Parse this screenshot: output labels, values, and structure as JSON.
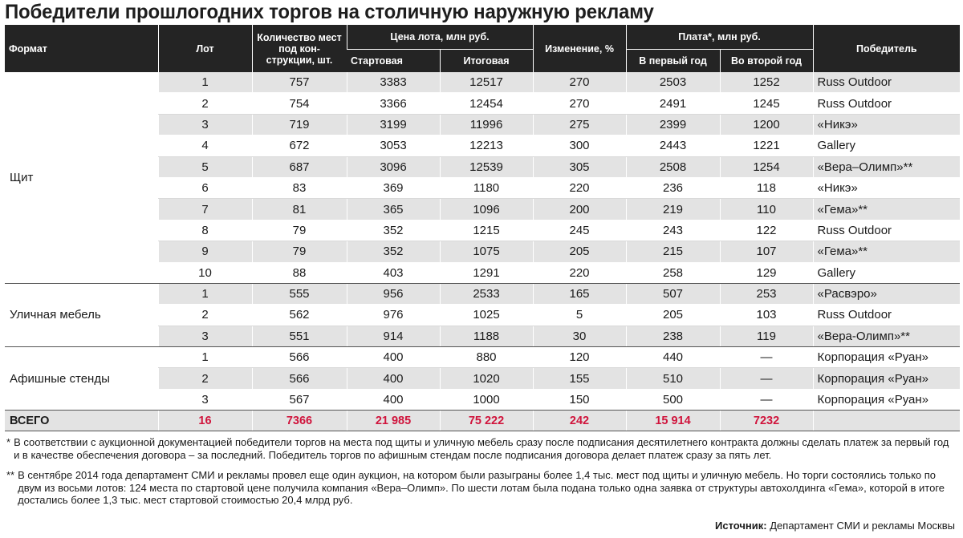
{
  "title": "Победители прошлогодних торгов на столичную наружную рекламу",
  "headers": {
    "format": "Формат",
    "lot": "Лот",
    "count": "Количество мест под кон-струкции, шт.",
    "price_group": "Цена лота, млн руб.",
    "start": "Стартовая",
    "final": "Итоговая",
    "change": "Изменение, %",
    "fee_group": "Плата*, млн руб.",
    "year1": "В первый год",
    "year2": "Во второй год",
    "winner": "Победитель"
  },
  "groups": [
    {
      "format": "Щит",
      "rows": [
        {
          "lot": "1",
          "count": "757",
          "start": "3383",
          "final": "12517",
          "change": "270",
          "year1": "2503",
          "year2": "1252",
          "winner": "Russ Outdoor"
        },
        {
          "lot": "2",
          "count": "754",
          "start": "3366",
          "final": "12454",
          "change": "270",
          "year1": "2491",
          "year2": "1245",
          "winner": "Russ Outdoor"
        },
        {
          "lot": "3",
          "count": "719",
          "start": "3199",
          "final": "11996",
          "change": "275",
          "year1": "2399",
          "year2": "1200",
          "winner": "«Никэ»"
        },
        {
          "lot": "4",
          "count": "672",
          "start": "3053",
          "final": "12213",
          "change": "300",
          "year1": "2443",
          "year2": "1221",
          "winner": "Gallery"
        },
        {
          "lot": "5",
          "count": "687",
          "start": "3096",
          "final": "12539",
          "change": "305",
          "year1": "2508",
          "year2": "1254",
          "winner": "«Вера–Олимп»**"
        },
        {
          "lot": "6",
          "count": "83",
          "start": "369",
          "final": "1180",
          "change": "220",
          "year1": "236",
          "year2": "118",
          "winner": "«Никэ»"
        },
        {
          "lot": "7",
          "count": "81",
          "start": "365",
          "final": "1096",
          "change": "200",
          "year1": "219",
          "year2": "110",
          "winner": "«Гема»**"
        },
        {
          "lot": "8",
          "count": "79",
          "start": "352",
          "final": "1215",
          "change": "245",
          "year1": "243",
          "year2": "122",
          "winner": "Russ Outdoor"
        },
        {
          "lot": "9",
          "count": "79",
          "start": "352",
          "final": "1075",
          "change": "205",
          "year1": "215",
          "year2": "107",
          "winner": "«Гема»**"
        },
        {
          "lot": "10",
          "count": "88",
          "start": "403",
          "final": "1291",
          "change": "220",
          "year1": "258",
          "year2": "129",
          "winner": "Gallery"
        }
      ]
    },
    {
      "format": "Уличная мебель",
      "rows": [
        {
          "lot": "1",
          "count": "555",
          "start": "956",
          "final": "2533",
          "change": "165",
          "year1": "507",
          "year2": "253",
          "winner": "«Расвэро»"
        },
        {
          "lot": "2",
          "count": "562",
          "start": "976",
          "final": "1025",
          "change": "5",
          "year1": "205",
          "year2": "103",
          "winner": "Russ Outdoor"
        },
        {
          "lot": "3",
          "count": "551",
          "start": "914",
          "final": "1188",
          "change": "30",
          "year1": "238",
          "year2": "119",
          "winner": "«Вера-Олимп»**"
        }
      ]
    },
    {
      "format": "Афишные стенды",
      "rows": [
        {
          "lot": "1",
          "count": "566",
          "start": "400",
          "final": "880",
          "change": "120",
          "year1": "440",
          "year2": "—",
          "winner": "Корпорация «Руан»"
        },
        {
          "lot": "2",
          "count": "566",
          "start": "400",
          "final": "1020",
          "change": "155",
          "year1": "510",
          "year2": "—",
          "winner": "Корпорация «Руан»"
        },
        {
          "lot": "3",
          "count": "567",
          "start": "400",
          "final": "1000",
          "change": "150",
          "year1": "500",
          "year2": "—",
          "winner": "Корпорация «Руан»"
        }
      ]
    }
  ],
  "total": {
    "label": "ВСЕГО",
    "lot": "16",
    "count": "7366",
    "start": "21 985",
    "final": "75 222",
    "change": "242",
    "year1": "15 914",
    "year2": "7232",
    "winner": ""
  },
  "notes": [
    {
      "mark": "*",
      "text": "В соответствии с аукционной документацией победители торгов на места под щиты и уличную мебель сразу после подписания десятилетнего контракта должны сделать платеж за первый год и в качестве обеспечения договора – за последний. Победитель торгов по афишным стендам после подписания договора делает платеж сразу за пять лет."
    },
    {
      "mark": "**",
      "text": "В сентябре 2014 года департамент СМИ и рекламы провел еще один аукцион, на котором были разыграны более 1,4 тыс. мест под щиты и уличную мебель. Но торги состоялись только по двум из восьми лотов: 124 места по стартовой цене получила компания «Вера–Олимп». По шести лотам была подана только одна заявка от структуры автохолдинга «Гема», которой в итоге достались более 1,3 тыс. мест стартовой стоимостью 20,4 млрд руб."
    }
  ],
  "source": {
    "label": "Источник:",
    "text": "Департамент СМИ и рекламы Москвы"
  },
  "colors": {
    "header_bg": "#242424",
    "row_shade": "#e3e3e3",
    "total_accent": "#d0143c"
  }
}
